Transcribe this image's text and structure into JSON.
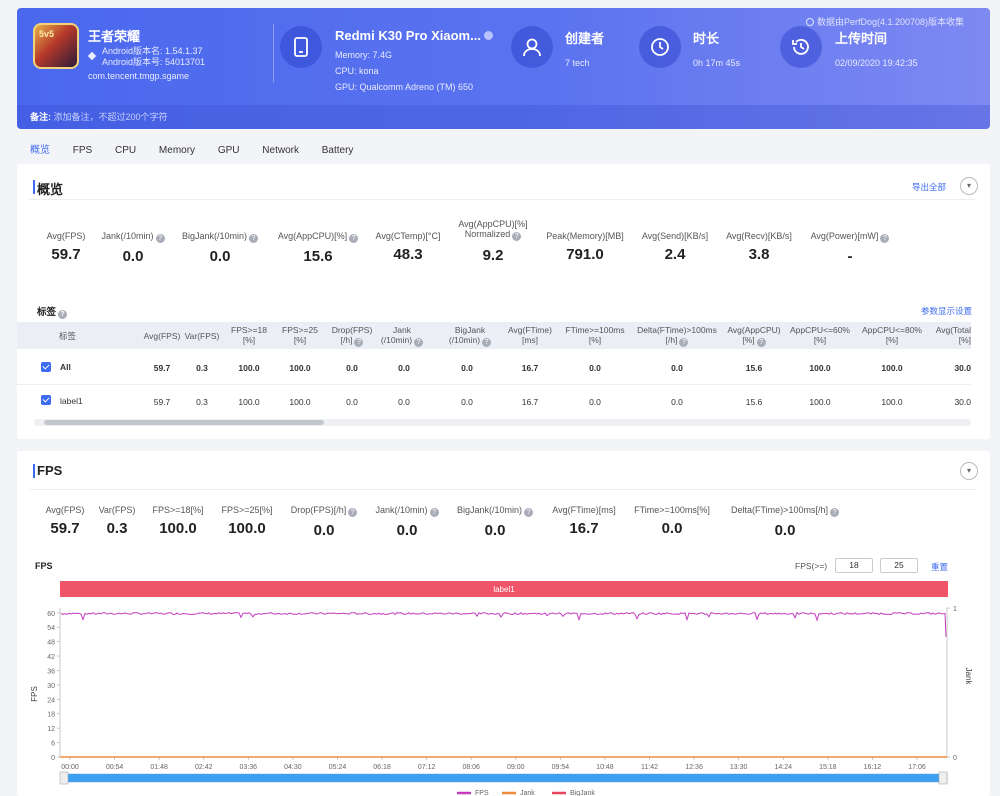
{
  "header": {
    "source_note": "数据由PerfDog(4.1.200708)版本收集",
    "app": {
      "name": "王者荣耀",
      "android_version": "Android版本名: 1.54.1.37",
      "android_code": "Android版本号: 54013701",
      "package": "com.tencent.tmgp.sgame",
      "icon_text": "5v5"
    },
    "device": {
      "name": "Redmi K30 Pro Xiaom...",
      "memory": "Memory: 7.4G",
      "cpu": "CPU: kona",
      "gpu": "GPU: Qualcomm Adreno (TM) 650"
    },
    "creator": {
      "label": "创建者",
      "value": "7 tech"
    },
    "duration": {
      "label": "时长",
      "value": "0h 17m 45s"
    },
    "upload": {
      "label": "上传时间",
      "value": "02/09/2020 19:42:35"
    },
    "remark_label": "备注:",
    "remark_placeholder": "添加备注，不超过200个字符"
  },
  "tabs": [
    "概览",
    "FPS",
    "CPU",
    "Memory",
    "GPU",
    "Network",
    "Battery"
  ],
  "overview": {
    "title": "概览",
    "export_all": "导出全部",
    "stats": [
      {
        "label": "Avg(FPS)",
        "value": "59.7"
      },
      {
        "label": "Jank(/10min)",
        "value": "0.0"
      },
      {
        "label": "BigJank(/10min)",
        "value": "0.0"
      },
      {
        "label": "Avg(AppCPU)[%]",
        "value": "15.6"
      },
      {
        "label": "Avg(CTemp)[°C]",
        "value": "48.3"
      },
      {
        "label": "Avg(AppCPU)[%] Normalized",
        "value": "9.2"
      },
      {
        "label": "Peak(Memory)[MB]",
        "value": "791.0"
      },
      {
        "label": "Avg(Send)[KB/s]",
        "value": "2.4"
      },
      {
        "label": "Avg(Recv)[KB/s]",
        "value": "3.8"
      },
      {
        "label": "Avg(Power)[mW]",
        "value": "-"
      }
    ],
    "tags_title": "标签",
    "param_settings": "参数显示设置",
    "columns": [
      "标签",
      "Avg(FPS)",
      "Var(FPS)",
      "FPS>=18 [%]",
      "FPS>=25 [%]",
      "Drop(FPS) [/h]",
      "Jank (/10min)",
      "BigJank (/10min)",
      "Avg(FTime) [ms]",
      "FTime>=100ms [%]",
      "Delta(FTime)>100ms [/h]",
      "Avg(AppCPU) [%]",
      "AppCPU<=60% [%]",
      "AppCPU<=80% [%]",
      "Avg(Total [%]"
    ],
    "rows": [
      {
        "label": "All",
        "cells": [
          "59.7",
          "0.3",
          "100.0",
          "100.0",
          "0.0",
          "0.0",
          "0.0",
          "16.7",
          "0.0",
          "0.0",
          "15.6",
          "100.0",
          "100.0",
          "30.0"
        ]
      },
      {
        "label": "label1",
        "cells": [
          "59.7",
          "0.3",
          "100.0",
          "100.0",
          "0.0",
          "0.0",
          "0.0",
          "16.7",
          "0.0",
          "0.0",
          "15.6",
          "100.0",
          "100.0",
          "30.0"
        ]
      }
    ]
  },
  "fps_section": {
    "title": "FPS",
    "stats": [
      {
        "label": "Avg(FPS)",
        "value": "59.7"
      },
      {
        "label": "Var(FPS)",
        "value": "0.3"
      },
      {
        "label": "FPS>=18[%]",
        "value": "100.0"
      },
      {
        "label": "FPS>=25[%]",
        "value": "100.0"
      },
      {
        "label": "Drop(FPS)[/h]",
        "value": "0.0"
      },
      {
        "label": "Jank(/10min)",
        "value": "0.0"
      },
      {
        "label": "BigJank(/10min)",
        "value": "0.0"
      },
      {
        "label": "Avg(FTime)[ms]",
        "value": "16.7"
      },
      {
        "label": "FTime>=100ms[%]",
        "value": "0.0"
      },
      {
        "label": "Delta(FTime)>100ms[/h]",
        "value": "0.0"
      }
    ],
    "chart_title": "FPS",
    "threshold_label": "FPS(>=)",
    "threshold_1": "18",
    "threshold_2": "25",
    "reset": "重置"
  },
  "chart_data": {
    "type": "line",
    "title": "FPS",
    "ylabel": "FPS",
    "y2label": "Jank",
    "ylim": [
      0,
      62
    ],
    "y2lim": [
      0,
      1
    ],
    "yticks": [
      0,
      6,
      12,
      18,
      24,
      30,
      36,
      42,
      48,
      54,
      60
    ],
    "y2ticks": [
      0,
      1
    ],
    "x_ticks": [
      "00:00",
      "00:54",
      "01:48",
      "02:42",
      "03:36",
      "04:30",
      "05:24",
      "06:18",
      "07:12",
      "08:06",
      "09:00",
      "09:54",
      "10:48",
      "11:42",
      "12:36",
      "13:30",
      "14:24",
      "15:18",
      "16:12",
      "17:06"
    ],
    "label_band": "label1",
    "series": [
      {
        "name": "FPS",
        "color": "#c33cc0",
        "avg": 59.7,
        "min_dip": 57,
        "last_drop": 50
      },
      {
        "name": "Jank",
        "color": "#f08b3a",
        "value": 0
      },
      {
        "name": "BigJank",
        "color": "#e8455c",
        "value": 0
      }
    ],
    "grid": false,
    "legend_placement": "bottom"
  }
}
